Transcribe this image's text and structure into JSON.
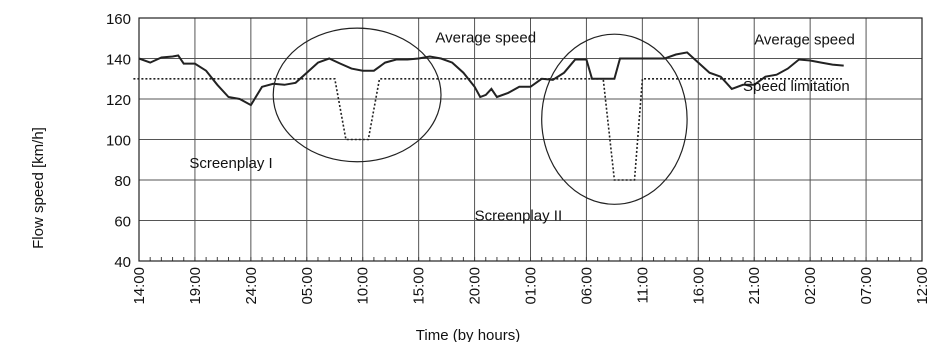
{
  "chart_data": {
    "type": "line",
    "xlabel": "Time (by hours)",
    "ylabel": "Flow speed [km/h]",
    "ylim": [
      40,
      160
    ],
    "yticks": [
      40,
      60,
      80,
      100,
      120,
      140,
      160
    ],
    "x_tick_labels": [
      "14:00",
      "19:00",
      "24:00",
      "05:00",
      "10:00",
      "15:00",
      "20:00",
      "01:00",
      "06:00",
      "11:00",
      "16:00",
      "21:00",
      "02:00",
      "07:00",
      "12:00"
    ],
    "x_range_hours": [
      0,
      70
    ],
    "grid": true,
    "series": [
      {
        "name": "Average speed",
        "style": "solid",
        "points": [
          [
            0,
            140
          ],
          [
            1,
            138
          ],
          [
            2,
            140.5
          ],
          [
            3,
            141
          ],
          [
            3.5,
            141.5
          ],
          [
            4,
            137.5
          ],
          [
            5,
            137.5
          ],
          [
            6,
            134
          ],
          [
            7,
            127
          ],
          [
            8,
            121
          ],
          [
            9,
            120
          ],
          [
            10,
            117
          ],
          [
            11,
            126
          ],
          [
            12,
            127.5
          ],
          [
            13,
            127
          ],
          [
            14,
            128
          ],
          [
            15,
            133
          ],
          [
            16,
            138
          ],
          [
            17,
            140
          ],
          [
            18,
            137.5
          ],
          [
            19,
            135
          ],
          [
            20,
            134
          ],
          [
            21,
            134
          ],
          [
            22,
            138
          ],
          [
            23,
            139.5
          ],
          [
            24,
            139.5
          ],
          [
            25,
            140
          ],
          [
            26,
            141
          ],
          [
            27,
            140
          ],
          [
            28,
            138
          ],
          [
            29,
            133
          ],
          [
            30,
            126
          ],
          [
            30.5,
            121
          ],
          [
            31,
            122
          ],
          [
            31.5,
            125
          ],
          [
            32,
            121
          ],
          [
            33,
            123
          ],
          [
            34,
            126
          ],
          [
            35,
            126
          ],
          [
            36,
            130
          ],
          [
            37,
            129.5
          ],
          [
            38,
            133
          ],
          [
            39,
            139.5
          ],
          [
            40,
            139.5
          ],
          [
            40.5,
            130
          ],
          [
            42,
            130
          ],
          [
            42.5,
            130
          ],
          [
            43,
            140
          ],
          [
            44,
            140
          ],
          [
            45,
            140
          ],
          [
            46,
            140
          ],
          [
            47,
            140
          ],
          [
            48,
            142
          ],
          [
            49,
            143
          ],
          [
            50,
            138
          ],
          [
            51,
            133
          ],
          [
            52,
            131
          ],
          [
            52.5,
            128
          ],
          [
            53,
            125
          ],
          [
            54,
            127
          ],
          [
            55,
            127
          ],
          [
            56,
            131
          ],
          [
            57,
            132
          ],
          [
            58,
            135
          ],
          [
            59,
            139.5
          ],
          [
            60,
            139
          ],
          [
            61,
            138
          ],
          [
            62,
            137
          ],
          [
            63,
            136.5
          ]
        ]
      },
      {
        "name": "Speed limitation",
        "style": "dotted",
        "points": [
          [
            -0.5,
            130
          ],
          [
            17.5,
            130
          ],
          [
            18.5,
            100
          ],
          [
            20.5,
            100
          ],
          [
            21.5,
            130
          ],
          [
            41.5,
            130
          ],
          [
            42.5,
            80
          ],
          [
            44.3,
            80
          ],
          [
            45,
            130
          ],
          [
            63,
            130
          ]
        ]
      }
    ],
    "annotations": [
      {
        "text": "Average speed",
        "x_hours": 26.5,
        "y": 148
      },
      {
        "text": "Average speed",
        "x_hours": 55,
        "y": 147
      },
      {
        "text": "Speed limitation",
        "x_hours": 54,
        "y": 124
      },
      {
        "text": "Screenplay I",
        "x_hours": 4.5,
        "y": 86
      },
      {
        "text": "Screenplay II",
        "x_hours": 30,
        "y": 60
      }
    ],
    "highlight_ellipses": [
      {
        "label": "Screenplay I",
        "cx_hours": 19.5,
        "cy": 122,
        "rx_hours": 7.5,
        "ry": 33
      },
      {
        "label": "Screenplay II",
        "cx_hours": 42.5,
        "cy": 110,
        "rx_hours": 6.5,
        "ry": 42
      }
    ]
  }
}
